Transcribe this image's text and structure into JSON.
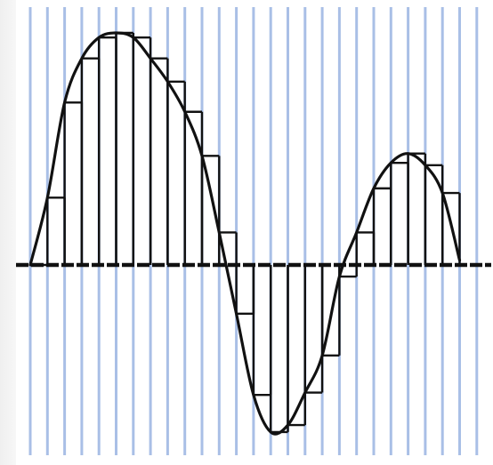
{
  "diagram": {
    "description_type": "sampled-waveform",
    "colors": {
      "background": "#ffffff",
      "grid_line": "#a9bfe6",
      "ink": "#111111"
    },
    "waveform": {
      "sample_values": [
        0.0,
        0.29,
        0.7,
        0.89,
        0.98,
        1.0,
        0.98,
        0.89,
        0.79,
        0.66,
        0.47,
        0.14,
        -0.21,
        -0.56,
        -0.72,
        -0.69,
        -0.55,
        -0.39,
        -0.05,
        0.14,
        0.33,
        0.44,
        0.48,
        0.43,
        0.31,
        0.02
      ],
      "baseline_value": 0
    }
  }
}
